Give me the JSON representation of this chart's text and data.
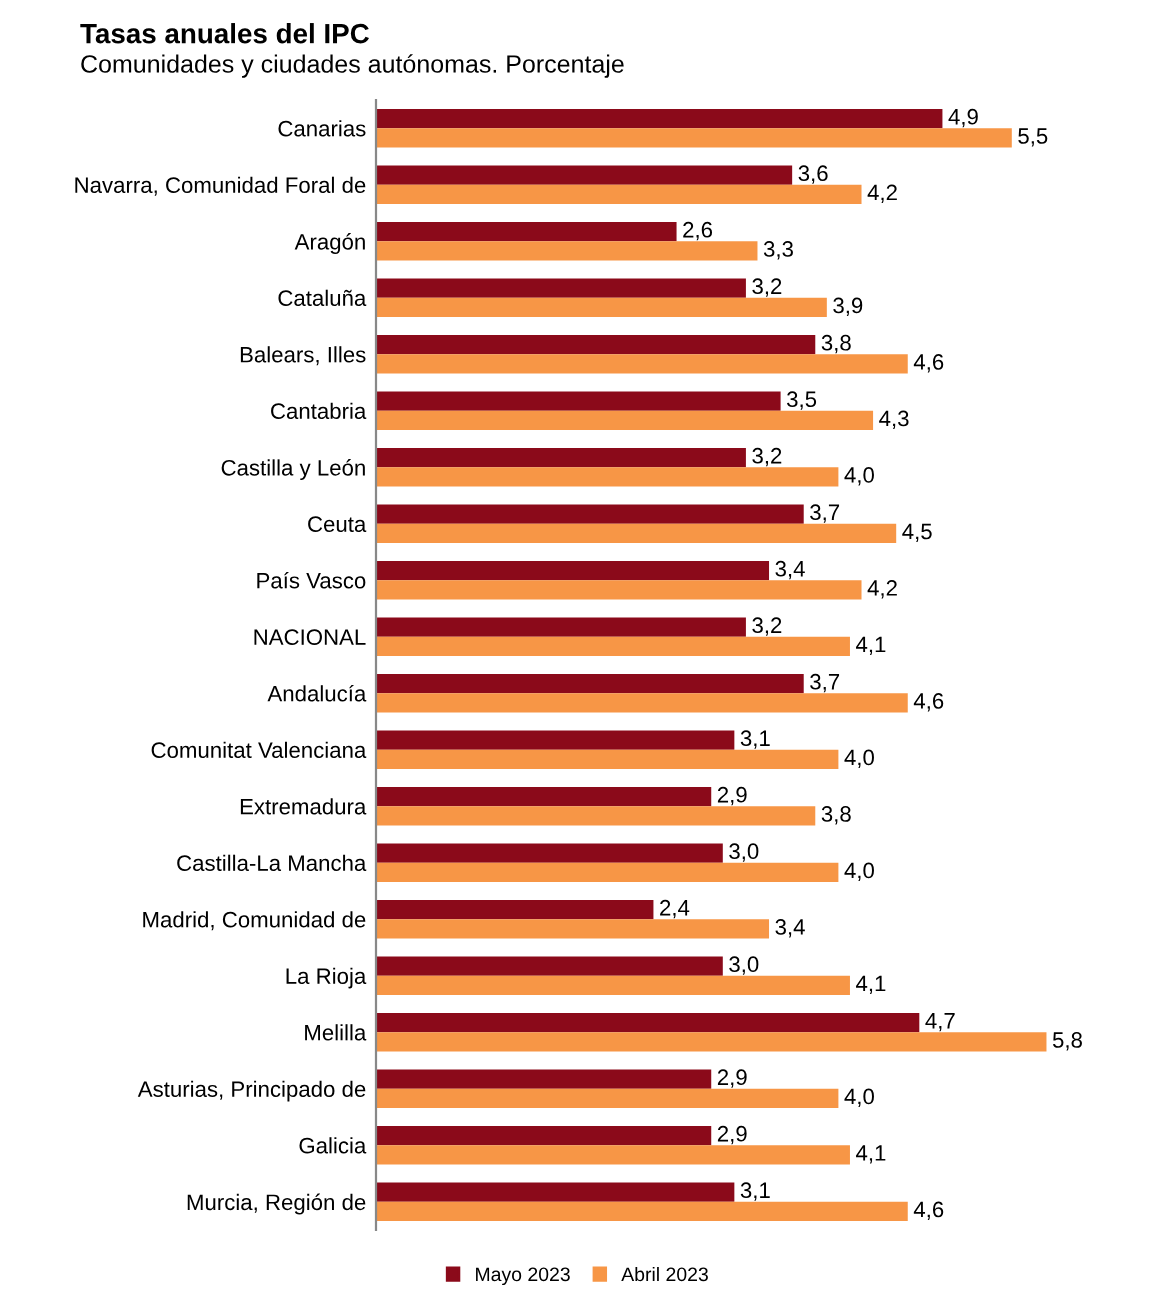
{
  "chart_data": {
    "type": "bar",
    "orientation": "horizontal",
    "title": "Tasas anuales del IPC",
    "subtitle": "Comunidades y ciudades autónomas. Porcentaje",
    "categories": [
      "Canarias",
      "Navarra, Comunidad Foral de",
      "Aragón",
      "Cataluña",
      "Balears, Illes",
      "Cantabria",
      "Castilla y León",
      "Ceuta",
      "País Vasco",
      "NACIONAL",
      "Andalucía",
      "Comunitat Valenciana",
      "Extremadura",
      "Castilla-La Mancha",
      "Madrid, Comunidad de",
      "La Rioja",
      "Melilla",
      "Asturias, Principado de",
      "Galicia",
      "Murcia, Región de"
    ],
    "series": [
      {
        "name": "Mayo 2023",
        "color": "#8b0a1a",
        "values": [
          4.9,
          3.6,
          2.6,
          3.2,
          3.8,
          3.5,
          3.2,
          3.7,
          3.4,
          3.2,
          3.7,
          3.1,
          2.9,
          3.0,
          2.4,
          3.0,
          4.7,
          2.9,
          2.9,
          3.1
        ],
        "value_labels": [
          "4,9",
          "3,6",
          "2,6",
          "3,2",
          "3,8",
          "3,5",
          "3,2",
          "3,7",
          "3,4",
          "3,2",
          "3,7",
          "3,1",
          "2,9",
          "3,0",
          "2,4",
          "3,0",
          "4,7",
          "2,9",
          "2,9",
          "3,1"
        ]
      },
      {
        "name": "Abril 2023",
        "color": "#f79646",
        "values": [
          5.5,
          4.2,
          3.3,
          3.9,
          4.6,
          4.3,
          4.0,
          4.5,
          4.2,
          4.1,
          4.6,
          4.0,
          3.8,
          4.0,
          3.4,
          4.1,
          5.8,
          4.0,
          4.1,
          4.6
        ],
        "value_labels": [
          "5,5",
          "4,2",
          "3,3",
          "3,9",
          "4,6",
          "4,3",
          "4,0",
          "4,5",
          "4,2",
          "4,1",
          "4,6",
          "4,0",
          "3,8",
          "4,0",
          "3,4",
          "4,1",
          "5,8",
          "4,0",
          "4,1",
          "4,6"
        ]
      }
    ],
    "tick_labels": "y",
    "grid": false,
    "legend": "bottom"
  }
}
